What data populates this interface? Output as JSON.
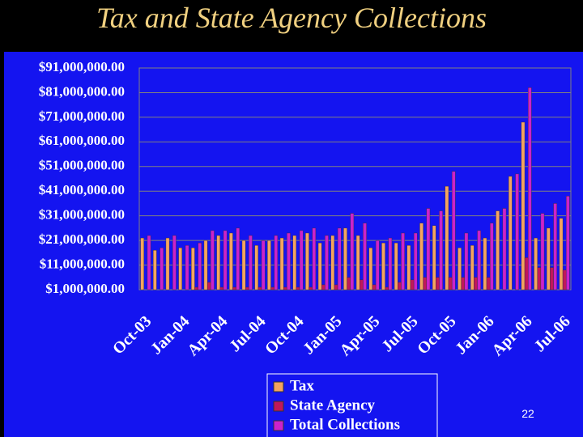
{
  "page_number": "22",
  "chart_data": {
    "type": "bar",
    "title": "Tax and State Agency Collections",
    "categories": [
      "Oct-03",
      null,
      null,
      "Jan-04",
      null,
      null,
      "Apr-04",
      null,
      null,
      "Jul-04",
      null,
      null,
      "Oct-04",
      null,
      null,
      "Jan-05",
      null,
      null,
      "Apr-05",
      null,
      null,
      "Jul-05",
      null,
      null,
      "Oct-05",
      null,
      null,
      "Jan-06",
      null,
      null,
      "Apr-06",
      null,
      null,
      "Jul-06"
    ],
    "series": [
      {
        "name": "Tax",
        "color": "#f4a460",
        "values": [
          22000000,
          17000000,
          22000000,
          18000000,
          18000000,
          21000000,
          23000000,
          24000000,
          21000000,
          19000000,
          21000000,
          22000000,
          23000000,
          24000000,
          20000000,
          23000000,
          26000000,
          23000000,
          18000000,
          20000000,
          20000000,
          19000000,
          28000000,
          27000000,
          43000000,
          18000000,
          19000000,
          22000000,
          33000000,
          47000000,
          69000000,
          22000000,
          26000000,
          30000000
        ]
      },
      {
        "name": "State Agency",
        "color": "#c0185a",
        "values": [
          1000000,
          1000000,
          1000000,
          1000000,
          2000000,
          4000000,
          2000000,
          2000000,
          2000000,
          2000000,
          2000000,
          2000000,
          2000000,
          2000000,
          3000000,
          3000000,
          6000000,
          5000000,
          3000000,
          2000000,
          4000000,
          5000000,
          6000000,
          6000000,
          6000000,
          6000000,
          6000000,
          6000000,
          1000000,
          1000000,
          14000000,
          10000000,
          10000000,
          9000000
        ]
      },
      {
        "name": "Total Collections",
        "color": "#cc22cc",
        "values": [
          23000000,
          18000000,
          23000000,
          19000000,
          20000000,
          25000000,
          25000000,
          26000000,
          23000000,
          21000000,
          23000000,
          24000000,
          25000000,
          26000000,
          23000000,
          26000000,
          32000000,
          28000000,
          21000000,
          22000000,
          24000000,
          24000000,
          34000000,
          33000000,
          49000000,
          24000000,
          25000000,
          28000000,
          34000000,
          48000000,
          83000000,
          32000000,
          36000000,
          39000000
        ]
      }
    ],
    "ylim": [
      1000000,
      91000000
    ],
    "yticks": [
      {
        "value": 1000000,
        "label": "$1,000,000.00"
      },
      {
        "value": 11000000,
        "label": "$11,000,000.00"
      },
      {
        "value": 21000000,
        "label": "$21,000,000.00"
      },
      {
        "value": 31000000,
        "label": "$31,000,000.00"
      },
      {
        "value": 41000000,
        "label": "$41,000,000.00"
      },
      {
        "value": 51000000,
        "label": "$51,000,000.00"
      },
      {
        "value": 61000000,
        "label": "$61,000,000.00"
      },
      {
        "value": 71000000,
        "label": "$71,000,000.00"
      },
      {
        "value": 81000000,
        "label": "$81,000,000.00"
      },
      {
        "value": 91000000,
        "label": "$91,000,000.00"
      }
    ],
    "grid": true,
    "legend": "bottom"
  }
}
